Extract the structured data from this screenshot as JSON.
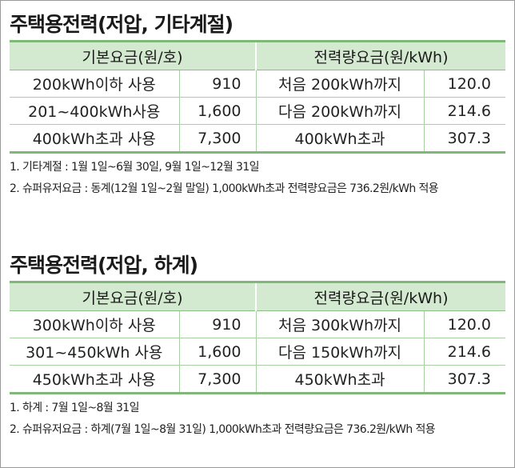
{
  "tables": [
    {
      "title": "주택용전력(저압, 기타계절)",
      "header_left": "기본요금(원/호)",
      "header_right": "전력량요금(원/kWh)",
      "rows": [
        {
          "base_label": "200kWh이하 사용",
          "base_value": "910",
          "energy_label": "처음 200kWh까지",
          "energy_value": "120.0"
        },
        {
          "base_label": "201~400kWh사용",
          "base_value": "1,600",
          "energy_label": "다음 200kWh까지",
          "energy_value": "214.6"
        },
        {
          "base_label": "400kWh초과 사용",
          "base_value": "7,300",
          "energy_label": "400kWh초과",
          "energy_value": "307.3"
        }
      ],
      "notes": [
        "1. 기타계절 : 1월 1일~6월 30일, 9월 1일~12월 31일",
        "2. 슈퍼유저요금 : 동계(12월 1일~2월 말일) 1,000kWh초과 전력량요금은 736.2원/kWh 적용"
      ]
    },
    {
      "title": "주택용전력(저압, 하계)",
      "header_left": "기본요금(원/호)",
      "header_right": "전력량요금(원/kWh)",
      "rows": [
        {
          "base_label": "300kWh이하 사용",
          "base_value": "910",
          "energy_label": "처음 300kWh까지",
          "energy_value": "120.0"
        },
        {
          "base_label": "301~450kWh 사용",
          "base_value": "1,600",
          "energy_label": "다음 150kWh까지",
          "energy_value": "214.6"
        },
        {
          "base_label": "450kWh초과 사용",
          "base_value": "7,300",
          "energy_label": "450kWh초과",
          "energy_value": "307.3"
        }
      ],
      "notes": [
        "1. 하계 : 7월 1일~8월 31일",
        "2. 슈퍼유저요금 : 하계(7월 1일~8월 31일) 1,000kWh초과 전력량요금은 736.2원/kWh 적용"
      ]
    }
  ]
}
